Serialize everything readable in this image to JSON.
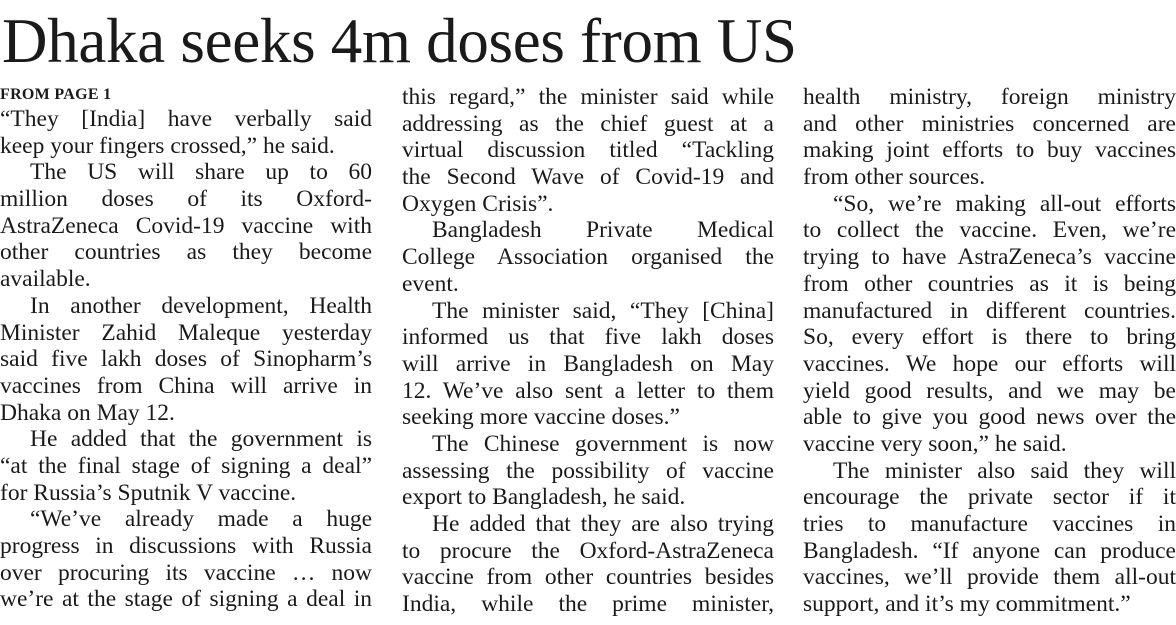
{
  "headline": "Dhaka seeks 4m doses from US",
  "kicker": "FROM PAGE 1",
  "columns": [
    {
      "paragraphs": [
        {
          "indent": false,
          "ends": true,
          "lines": [
            "“They [India] have verbally said",
            "keep your fingers crossed,” he said."
          ]
        },
        {
          "indent": true,
          "ends": true,
          "lines": [
            "The US will share up to 60",
            "million doses of its Oxford-",
            "AstraZeneca Covid-19 vaccine with",
            "other countries as they become",
            "available."
          ]
        },
        {
          "indent": true,
          "ends": true,
          "lines": [
            "In another development, Health",
            "Minister Zahid Maleque yesterday",
            "said five lakh doses of Sinopharm’s",
            "vaccines from China will arrive in",
            "Dhaka on May 12."
          ]
        },
        {
          "indent": true,
          "ends": true,
          "lines": [
            "He added that the government is",
            "“at the final stage of signing a deal”",
            "for Russia’s Sputnik V vaccine."
          ]
        },
        {
          "indent": true,
          "ends": false,
          "lines": [
            "“We’ve already made a huge",
            "progress in discussions with Russia",
            "over procuring its vaccine … now",
            "we’re at the stage of signing a deal in"
          ]
        }
      ]
    },
    {
      "paragraphs": [
        {
          "indent": false,
          "ends": true,
          "lines": [
            "this regard,” the minister said while",
            "addressing as the chief guest at a",
            "virtual discussion titled “Tackling",
            "the Second Wave of Covid-19 and",
            "Oxygen Crisis”."
          ]
        },
        {
          "indent": true,
          "ends": true,
          "lines": [
            "Bangladesh Private Medical",
            "College Association organised the",
            "event."
          ]
        },
        {
          "indent": true,
          "ends": true,
          "lines": [
            "The minister said, “They [China]",
            "informed us that five lakh doses",
            "will arrive in Bangladesh on May",
            "12. We’ve also sent a letter to them",
            "seeking more vaccine doses.”"
          ]
        },
        {
          "indent": true,
          "ends": true,
          "lines": [
            "The Chinese government is now",
            "assessing the possibility of vaccine",
            "export to Bangladesh, he said."
          ]
        },
        {
          "indent": true,
          "ends": false,
          "lines": [
            "He added that they are also trying",
            "to procure the Oxford-AstraZeneca",
            "vaccine from other countries besides",
            "India, while the prime minister,"
          ]
        }
      ]
    },
    {
      "paragraphs": [
        {
          "indent": false,
          "ends": true,
          "lines": [
            "health ministry, foreign ministry",
            "and other ministries concerned are",
            "making joint efforts to buy vaccines",
            "from other sources."
          ]
        },
        {
          "indent": true,
          "ends": true,
          "lines": [
            "“So, we’re making all-out efforts",
            "to collect the vaccine. Even, we’re",
            "trying to have AstraZeneca’s vaccine",
            "from other countries as it is being",
            "manufactured in different countries.",
            "So, every effort is there to bring",
            "vaccines. We hope our efforts will",
            "yield good results, and we may be",
            "able to give you good news over the",
            "vaccine very soon,” he said."
          ]
        },
        {
          "indent": true,
          "ends": true,
          "lines": [
            "The minister also said they will",
            "encourage the private sector if it",
            "tries to manufacture vaccines in",
            "Bangladesh. “If anyone can produce",
            "vaccines, we’ll provide them all-out",
            "support, and it’s my commitment.”"
          ]
        }
      ]
    }
  ]
}
